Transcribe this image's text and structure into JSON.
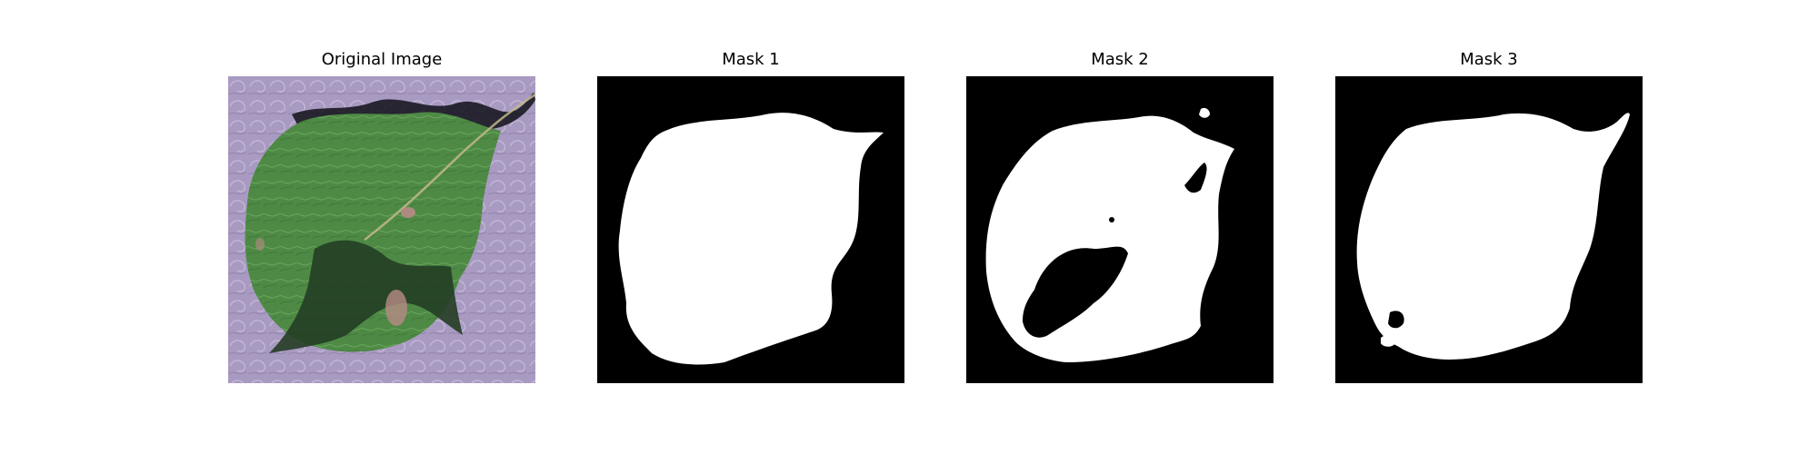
{
  "figure": {
    "panels": [
      {
        "title": "Original Image",
        "kind": "photo"
      },
      {
        "title": "Mask 1",
        "kind": "mask"
      },
      {
        "title": "Mask 2",
        "kind": "mask"
      },
      {
        "title": "Mask 3",
        "kind": "mask"
      }
    ]
  },
  "colors": {
    "background": "#ffffff",
    "mask_background": "#000000",
    "mask_foreground": "#ffffff",
    "photo_background": "#a99ac2",
    "leaf": "#4e8a45",
    "leaf_shadow": "#233d24",
    "leaf_spot": "#b88a86"
  }
}
